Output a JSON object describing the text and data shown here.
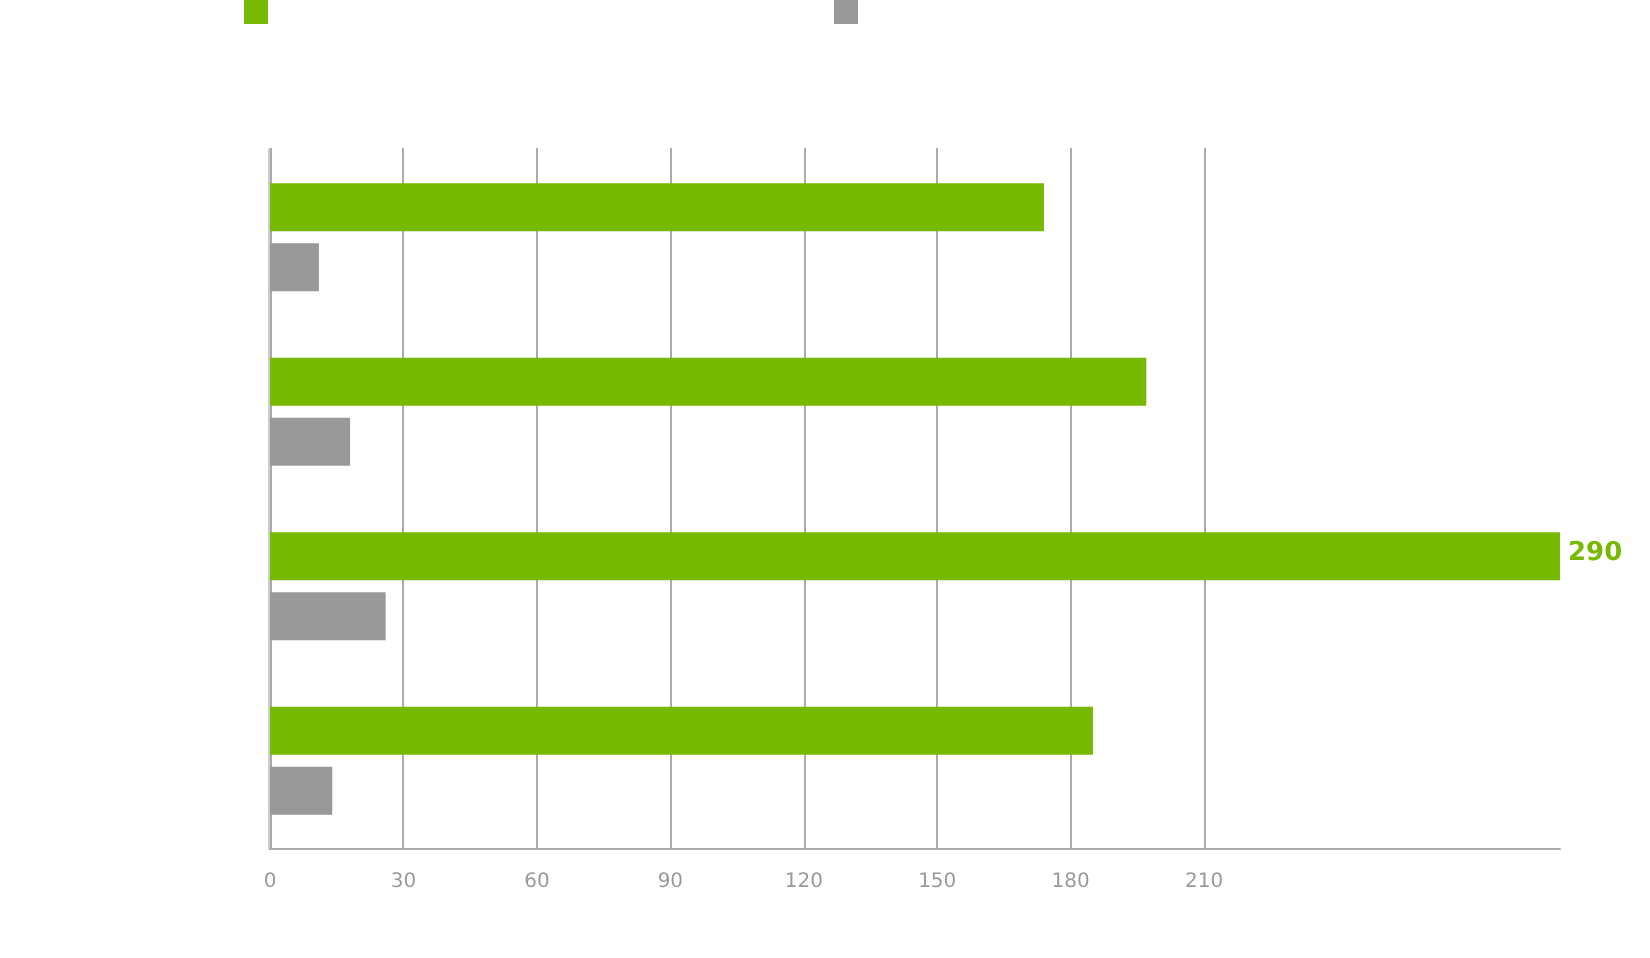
{
  "chart_data": {
    "type": "bar",
    "orientation": "horizontal",
    "categories": [
      null,
      null,
      null,
      null
    ],
    "series": [
      {
        "color": "#76b900",
        "values": [
          174,
          197,
          290,
          185
        ],
        "value_labels": [
          null,
          null,
          "290",
          null
        ]
      },
      {
        "color": "#999999",
        "values": [
          11,
          18,
          26,
          14
        ]
      }
    ],
    "xlim": [
      0,
      290
    ],
    "xticks": [
      0,
      30,
      60,
      90,
      120,
      150,
      180,
      210
    ],
    "grid": "x"
  }
}
